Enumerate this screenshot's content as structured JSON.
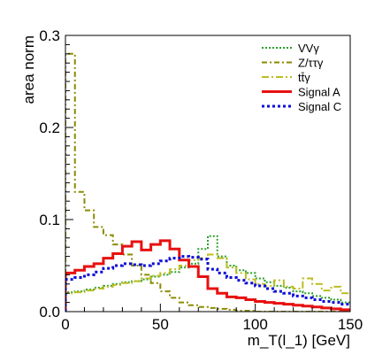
{
  "chart_data": {
    "type": "histogram-step",
    "ylabel": "area norm",
    "xlabel": "m_T(l_1) [GeV]",
    "xlim": [
      0,
      150
    ],
    "ylim": [
      0,
      0.3
    ],
    "x_ticks": [
      0,
      50,
      100,
      150
    ],
    "y_ticks": [
      0,
      0.1,
      0.2,
      0.3
    ],
    "x_tick_labels": [
      "0",
      "50",
      "100",
      "150"
    ],
    "y_tick_labels": [
      "0.0",
      "0.1",
      "0.2",
      "0.3"
    ],
    "grid": false,
    "legend_position": "top-right",
    "bin_edges": [
      0,
      5,
      10,
      15,
      20,
      25,
      30,
      35,
      40,
      45,
      50,
      55,
      60,
      65,
      70,
      75,
      80,
      85,
      90,
      95,
      100,
      105,
      110,
      115,
      120,
      125,
      130,
      135,
      140,
      145,
      150
    ],
    "series": [
      {
        "name": "VVγ",
        "color": "#2ca02c",
        "dash": "2,2",
        "width": 2,
        "values": [
          0.021,
          0.022,
          0.024,
          0.026,
          0.028,
          0.03,
          0.032,
          0.033,
          0.035,
          0.038,
          0.04,
          0.043,
          0.048,
          0.052,
          0.068,
          0.082,
          0.06,
          0.05,
          0.045,
          0.042,
          0.036,
          0.032,
          0.028,
          0.026,
          0.022,
          0.02,
          0.017,
          0.015,
          0.013,
          0.01
        ]
      },
      {
        "name": "Z/ττγ",
        "color": "#8b8b00",
        "dash": "6,3,2,3",
        "width": 2,
        "values": [
          0.28,
          0.13,
          0.11,
          0.092,
          0.083,
          0.073,
          0.062,
          0.05,
          0.04,
          0.031,
          0.022,
          0.015,
          0.01,
          0.007,
          0.005,
          0.004,
          0.003,
          0.002,
          0.001,
          0.001,
          0.0,
          0.0,
          0.0,
          0.0,
          0.0,
          0.0,
          0.0,
          0.0,
          0.0,
          0.0
        ]
      },
      {
        "name": "tt̄γ",
        "color": "#bcbd22",
        "dash": "8,3,2,3",
        "width": 2,
        "values": [
          0.02,
          0.021,
          0.023,
          0.025,
          0.027,
          0.029,
          0.031,
          0.033,
          0.036,
          0.039,
          0.042,
          0.046,
          0.05,
          0.056,
          0.058,
          0.062,
          0.058,
          0.048,
          0.042,
          0.035,
          0.03,
          0.028,
          0.034,
          0.027,
          0.025,
          0.036,
          0.03,
          0.023,
          0.027,
          0.02
        ]
      },
      {
        "name": "Signal A",
        "color": "#e81010",
        "dash": "",
        "width": 3,
        "values": [
          0.042,
          0.045,
          0.049,
          0.052,
          0.058,
          0.063,
          0.071,
          0.076,
          0.067,
          0.073,
          0.077,
          0.068,
          0.056,
          0.049,
          0.038,
          0.025,
          0.02,
          0.016,
          0.015,
          0.013,
          0.011,
          0.01,
          0.009,
          0.008,
          0.007,
          0.006,
          0.005,
          0.004,
          0.003,
          0.002
        ]
      },
      {
        "name": "Signal C",
        "color": "#0a0ad6",
        "dash": "3,3",
        "width": 3,
        "values": [
          0.035,
          0.037,
          0.04,
          0.043,
          0.047,
          0.05,
          0.052,
          0.051,
          0.05,
          0.052,
          0.055,
          0.058,
          0.06,
          0.059,
          0.057,
          0.046,
          0.042,
          0.037,
          0.034,
          0.031,
          0.028,
          0.025,
          0.022,
          0.02,
          0.017,
          0.015,
          0.013,
          0.011,
          0.01,
          0.008
        ]
      }
    ]
  }
}
